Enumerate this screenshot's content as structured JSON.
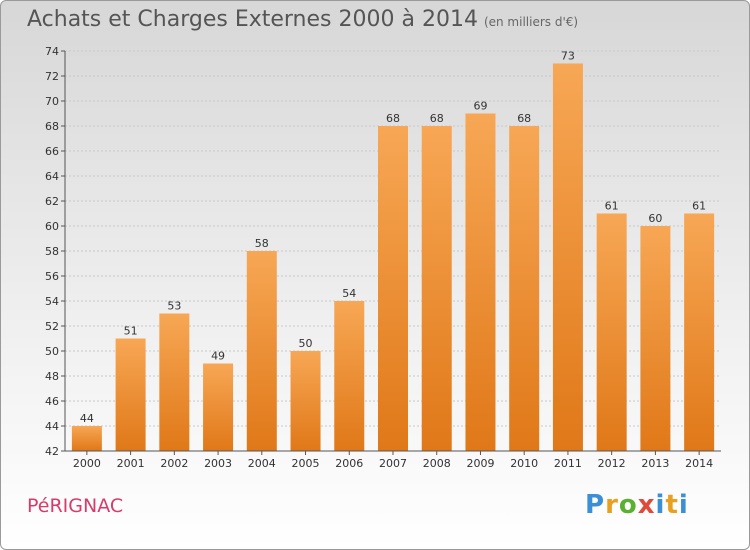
{
  "chart_data": {
    "type": "bar",
    "title": "Achats et Charges Externes 2000 à 2014",
    "unit_label": "(en milliers d'€)",
    "categories": [
      "2000",
      "2001",
      "2002",
      "2003",
      "2004",
      "2005",
      "2006",
      "2007",
      "2008",
      "2009",
      "2010",
      "2011",
      "2012",
      "2013",
      "2014"
    ],
    "values": [
      44,
      51,
      53,
      49,
      58,
      50,
      54,
      68,
      68,
      69,
      68,
      73,
      61,
      60,
      61
    ],
    "ylim": [
      42,
      74
    ],
    "yticks": [
      42,
      44,
      46,
      48,
      50,
      52,
      54,
      56,
      58,
      60,
      62,
      64,
      66,
      68,
      70,
      72,
      74
    ],
    "grid": true,
    "bar_color": "#f0a050",
    "xlabel": "",
    "ylabel": ""
  },
  "commune": "PéRIGNAC",
  "logo": {
    "letters": [
      "P",
      "r",
      "o",
      "x",
      "i",
      "t",
      "i"
    ],
    "colors": [
      "#3a8fd6",
      "#e8a020",
      "#5ab030",
      "#e04a3a",
      "#3a8fd6",
      "#e8a020",
      "#3a8fd6"
    ]
  }
}
